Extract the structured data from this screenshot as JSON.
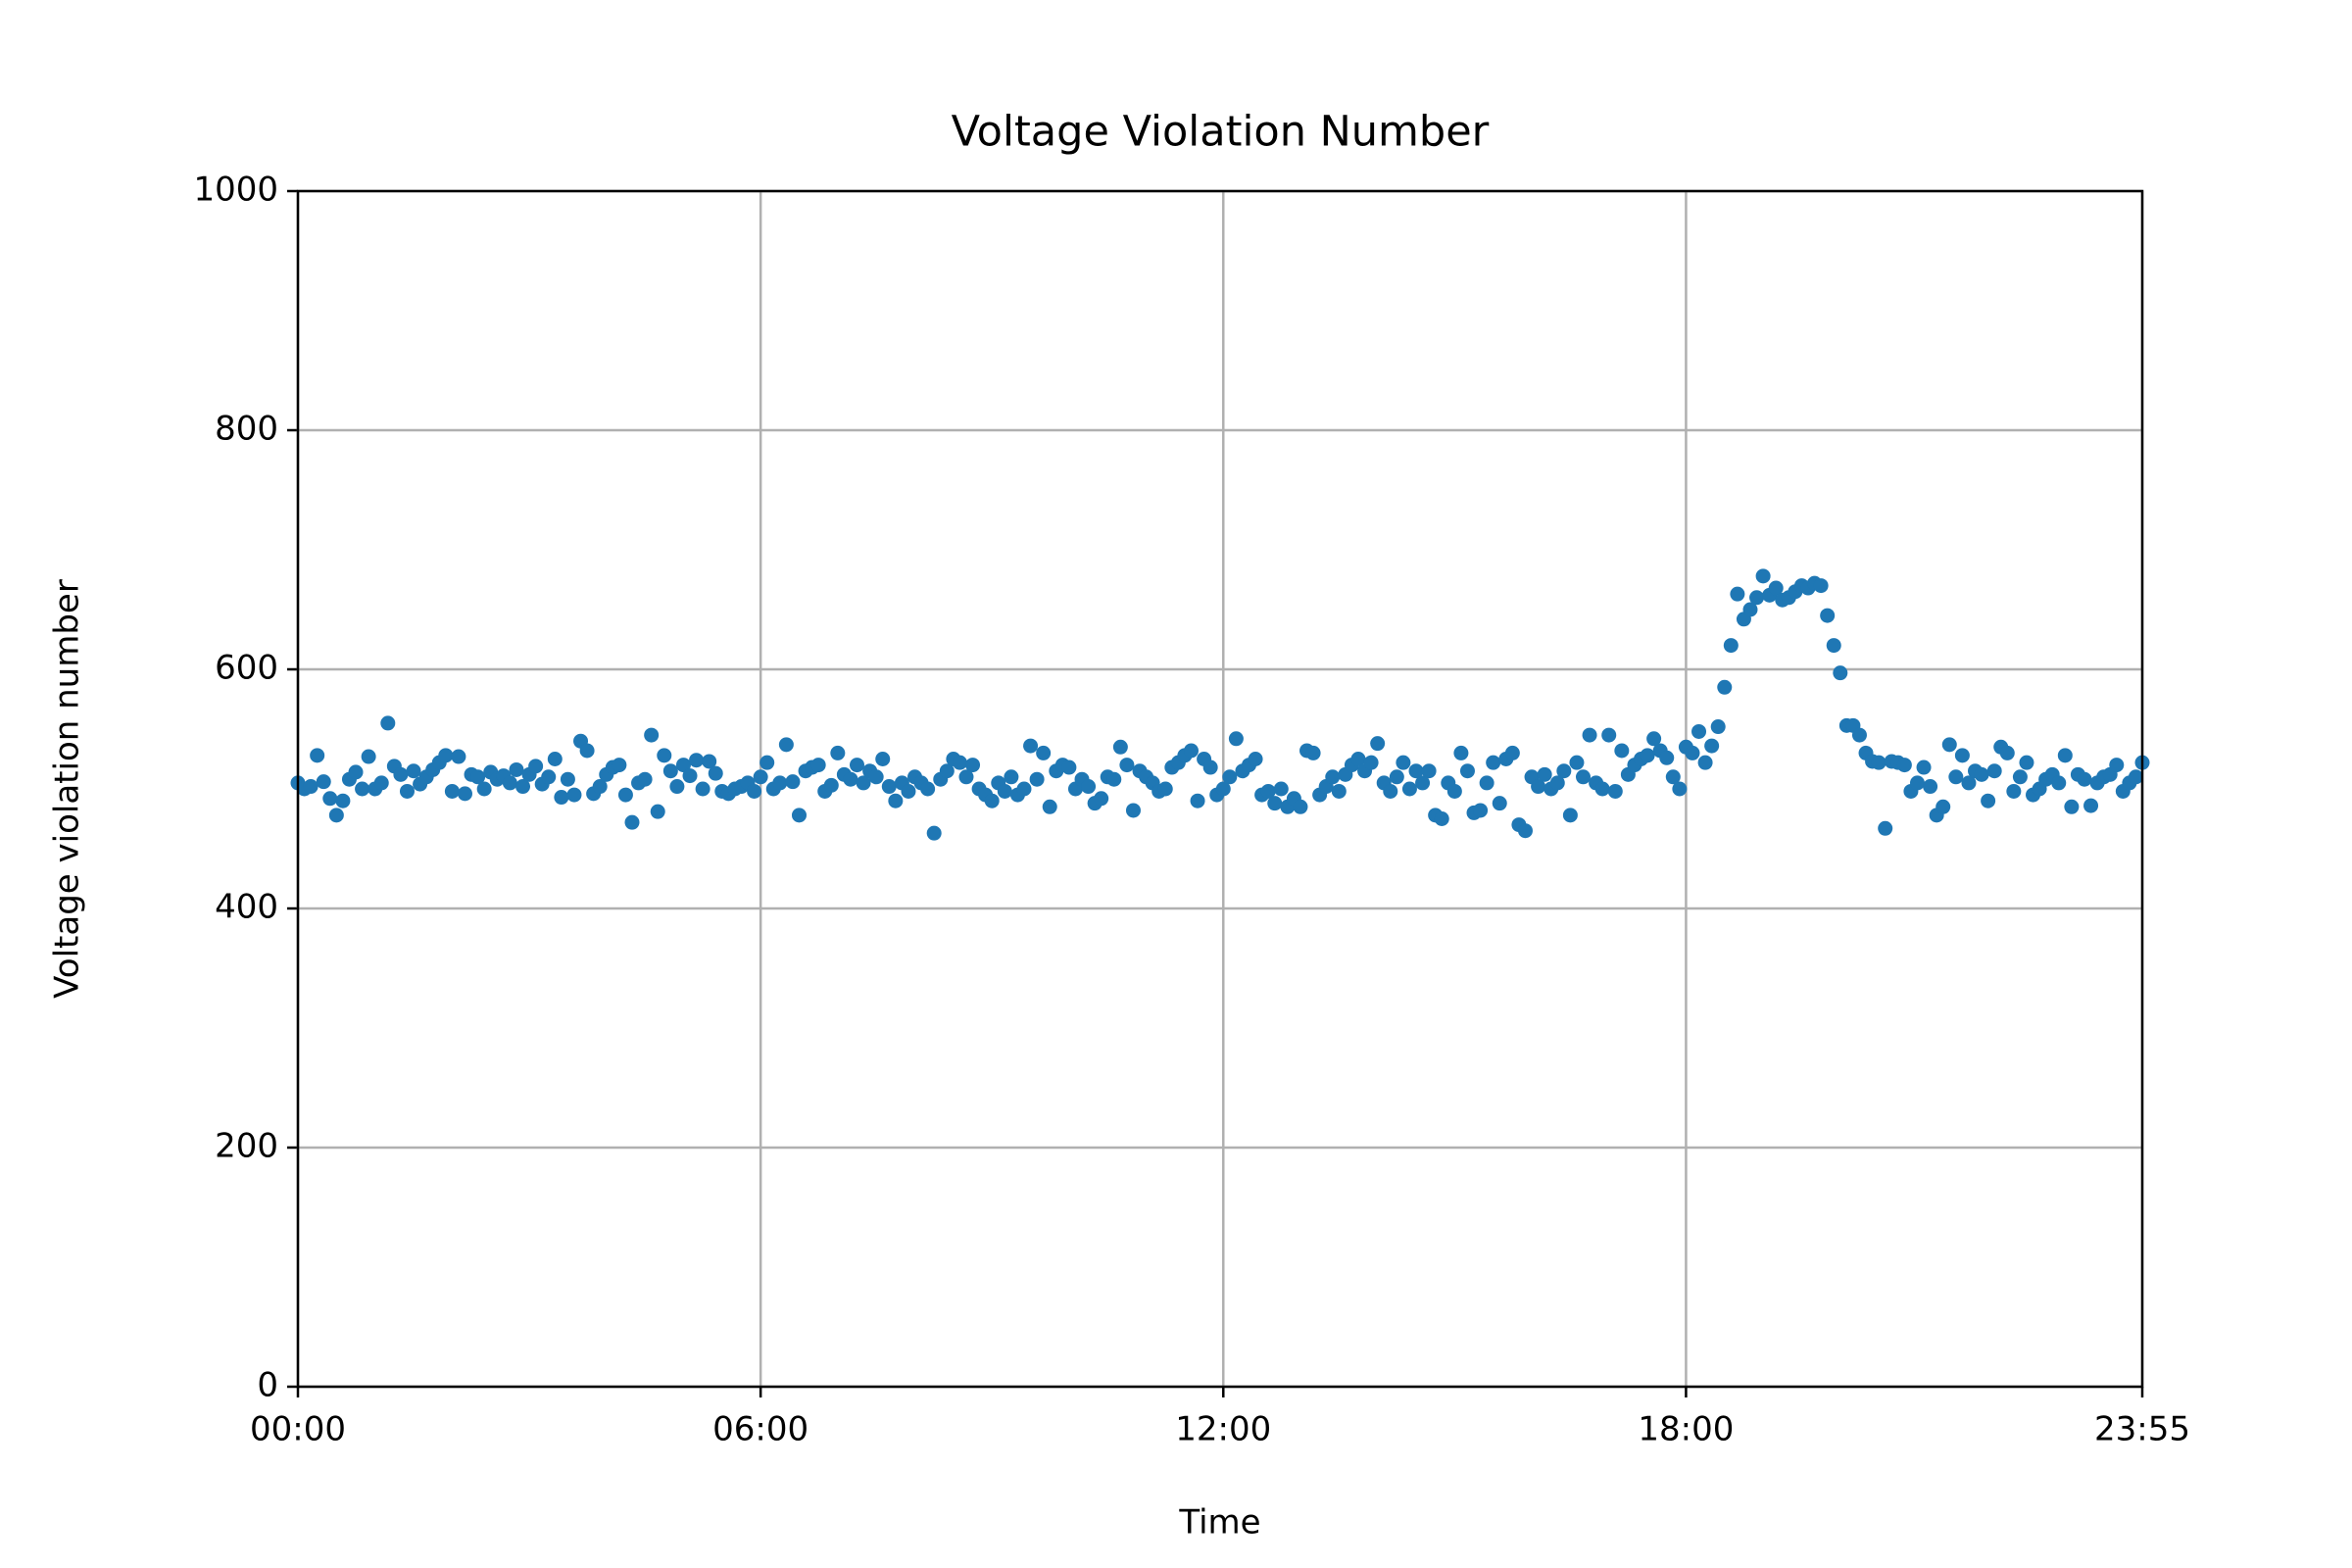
{
  "chart_data": {
    "type": "scatter",
    "title": "Voltage Violation Number",
    "x_label": "Time",
    "y_label": "Voltage violation number",
    "color": "#1f77b4",
    "grid": true,
    "xlim": [
      "00:00",
      "23:55"
    ],
    "xticks": [
      "00:00",
      "06:00",
      "12:00",
      "18:00",
      "23:55"
    ],
    "ylim": [
      0,
      1000
    ],
    "yticks": [
      0,
      200,
      400,
      600,
      800,
      1000
    ],
    "x": [
      "00:00",
      "00:05",
      "00:10",
      "00:15",
      "00:20",
      "00:25",
      "00:30",
      "00:35",
      "00:40",
      "00:45",
      "00:50",
      "00:55",
      "01:00",
      "01:05",
      "01:10",
      "01:15",
      "01:20",
      "01:25",
      "01:30",
      "01:35",
      "01:40",
      "01:45",
      "01:50",
      "01:55",
      "02:00",
      "02:05",
      "02:10",
      "02:15",
      "02:20",
      "02:25",
      "02:30",
      "02:35",
      "02:40",
      "02:45",
      "02:50",
      "02:55",
      "03:00",
      "03:05",
      "03:10",
      "03:15",
      "03:20",
      "03:25",
      "03:30",
      "03:35",
      "03:40",
      "03:45",
      "03:50",
      "03:55",
      "04:00",
      "04:05",
      "04:10",
      "04:15",
      "04:20",
      "04:25",
      "04:30",
      "04:35",
      "04:40",
      "04:45",
      "04:50",
      "04:55",
      "05:00",
      "05:05",
      "05:10",
      "05:15",
      "05:20",
      "05:25",
      "05:30",
      "05:35",
      "05:40",
      "05:45",
      "05:50",
      "05:55",
      "06:00",
      "06:05",
      "06:10",
      "06:15",
      "06:20",
      "06:25",
      "06:30",
      "06:35",
      "06:40",
      "06:45",
      "06:50",
      "06:55",
      "07:00",
      "07:05",
      "07:10",
      "07:15",
      "07:20",
      "07:25",
      "07:30",
      "07:35",
      "07:40",
      "07:45",
      "07:50",
      "07:55",
      "08:00",
      "08:05",
      "08:10",
      "08:15",
      "08:20",
      "08:25",
      "08:30",
      "08:35",
      "08:40",
      "08:45",
      "08:50",
      "08:55",
      "09:00",
      "09:05",
      "09:10",
      "09:15",
      "09:20",
      "09:25",
      "09:30",
      "09:35",
      "09:40",
      "09:45",
      "09:50",
      "09:55",
      "10:00",
      "10:05",
      "10:10",
      "10:15",
      "10:20",
      "10:25",
      "10:30",
      "10:35",
      "10:40",
      "10:45",
      "10:50",
      "10:55",
      "11:00",
      "11:05",
      "11:10",
      "11:15",
      "11:20",
      "11:25",
      "11:30",
      "11:35",
      "11:40",
      "11:45",
      "11:50",
      "11:55",
      "12:00",
      "12:05",
      "12:10",
      "12:15",
      "12:20",
      "12:25",
      "12:30",
      "12:35",
      "12:40",
      "12:45",
      "12:50",
      "12:55",
      "13:00",
      "13:05",
      "13:10",
      "13:15",
      "13:20",
      "13:25",
      "13:30",
      "13:35",
      "13:40",
      "13:45",
      "13:50",
      "13:55",
      "14:00",
      "14:05",
      "14:10",
      "14:15",
      "14:20",
      "14:25",
      "14:30",
      "14:35",
      "14:40",
      "14:45",
      "14:50",
      "14:55",
      "15:00",
      "15:05",
      "15:10",
      "15:15",
      "15:20",
      "15:25",
      "15:30",
      "15:35",
      "15:40",
      "15:45",
      "15:50",
      "15:55",
      "16:00",
      "16:05",
      "16:10",
      "16:15",
      "16:20",
      "16:25",
      "16:30",
      "16:35",
      "16:40",
      "16:45",
      "16:50",
      "16:55",
      "17:00",
      "17:05",
      "17:10",
      "17:15",
      "17:20",
      "17:25",
      "17:30",
      "17:35",
      "17:40",
      "17:45",
      "17:50",
      "17:55",
      "18:00",
      "18:05",
      "18:10",
      "18:15",
      "18:20",
      "18:25",
      "18:30",
      "18:35",
      "18:40",
      "18:45",
      "18:50",
      "18:55",
      "19:00",
      "19:05",
      "19:10",
      "19:15",
      "19:20",
      "19:25",
      "19:30",
      "19:35",
      "19:40",
      "19:45",
      "19:50",
      "19:55",
      "20:00",
      "20:05",
      "20:10",
      "20:15",
      "20:20",
      "20:25",
      "20:30",
      "20:35",
      "20:40",
      "20:45",
      "20:50",
      "20:55",
      "21:00",
      "21:05",
      "21:10",
      "21:15",
      "21:20",
      "21:25",
      "21:30",
      "21:35",
      "21:40",
      "21:45",
      "21:50",
      "21:55",
      "22:00",
      "22:05",
      "22:10",
      "22:15",
      "22:20",
      "22:25",
      "22:30",
      "22:35",
      "22:40",
      "22:45",
      "22:50",
      "22:55",
      "23:00",
      "23:05",
      "23:10",
      "23:15",
      "23:20",
      "23:25",
      "23:30",
      "23:35",
      "23:40",
      "23:45",
      "23:50",
      "23:55"
    ],
    "values": [
      505,
      500,
      502,
      528,
      506,
      492,
      478,
      490,
      508,
      514,
      500,
      527,
      500,
      505,
      555,
      519,
      512,
      498,
      515,
      504,
      510,
      516,
      522,
      528,
      498,
      527,
      496,
      512,
      510,
      500,
      514,
      508,
      511,
      505,
      516,
      502,
      512,
      519,
      504,
      510,
      525,
      493,
      508,
      495,
      540,
      532,
      496,
      502,
      512,
      518,
      520,
      495,
      472,
      505,
      508,
      545,
      481,
      528,
      515,
      502,
      520,
      511,
      524,
      500,
      523,
      513,
      498,
      496,
      500,
      502,
      505,
      498,
      510,
      522,
      500,
      505,
      537,
      506,
      478,
      515,
      518,
      520,
      498,
      503,
      530,
      512,
      508,
      520,
      505,
      515,
      510,
      525,
      502,
      490,
      505,
      498,
      510,
      505,
      500,
      463,
      508,
      515,
      525,
      522,
      510,
      520,
      500,
      495,
      490,
      505,
      498,
      510,
      495,
      500,
      536,
      508,
      530,
      485,
      515,
      520,
      518,
      500,
      508,
      502,
      488,
      492,
      510,
      508,
      535,
      520,
      482,
      515,
      510,
      505,
      498,
      500,
      518,
      522,
      528,
      532,
      490,
      525,
      518,
      495,
      500,
      510,
      542,
      515,
      520,
      525,
      495,
      498,
      488,
      500,
      485,
      492,
      485,
      532,
      530,
      495,
      502,
      510,
      498,
      512,
      520,
      525,
      515,
      522,
      538,
      505,
      498,
      510,
      522,
      500,
      515,
      505,
      515,
      478,
      475,
      505,
      498,
      530,
      515,
      480,
      482,
      505,
      522,
      488,
      525,
      530,
      470,
      465,
      510,
      502,
      512,
      500,
      505,
      515,
      478,
      522,
      510,
      545,
      505,
      500,
      545,
      498,
      532,
      512,
      520,
      525,
      528,
      542,
      532,
      526,
      510,
      500,
      535,
      530,
      548,
      522,
      536,
      552,
      585,
      620,
      663,
      642,
      650,
      660,
      678,
      662,
      668,
      658,
      660,
      665,
      670,
      668,
      672,
      670,
      645,
      620,
      597,
      553,
      553,
      545,
      530,
      523,
      522,
      467,
      523,
      522,
      520,
      498,
      505,
      518,
      502,
      478,
      485,
      537,
      510,
      528,
      505,
      515,
      512,
      490,
      515,
      535,
      530,
      498,
      510,
      522,
      495,
      500,
      508,
      512,
      505,
      528,
      485,
      512,
      508,
      486,
      505,
      510,
      512,
      520,
      498,
      505,
      510,
      522
    ]
  }
}
